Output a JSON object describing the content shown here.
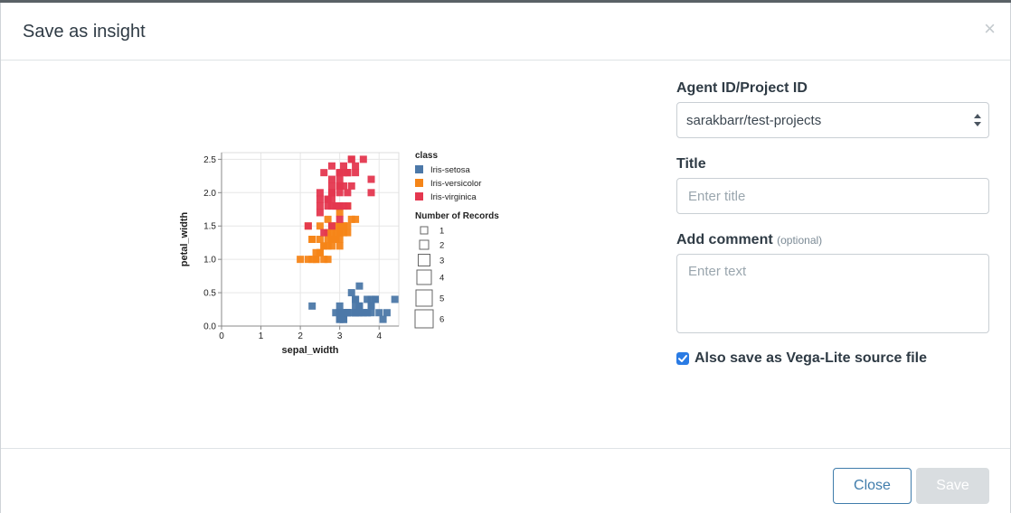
{
  "dialog": {
    "title": "Save as insight",
    "close_symbol": "×"
  },
  "form": {
    "agent_label": "Agent ID/Project ID",
    "agent_value": "sarakbarr/test-projects",
    "title_label": "Title",
    "title_placeholder": "Enter title",
    "comment_label": "Add comment",
    "comment_optional": "(optional)",
    "comment_placeholder": "Enter text",
    "vega_checkbox_label": "Also save as Vega-Lite source file",
    "vega_checkbox_checked": true
  },
  "footer": {
    "close_label": "Close",
    "save_label": "Save"
  },
  "colors": {
    "accent": "#2a7be4",
    "setosa": "#4c78a8",
    "versicolor": "#f58518",
    "virginica": "#e4374f"
  },
  "chart_data": {
    "type": "scatter",
    "xlabel": "sepal_width",
    "ylabel": "petal_width",
    "xlim": [
      0,
      4.5
    ],
    "ylim": [
      0,
      2.6
    ],
    "x_ticks": [
      "0",
      "1",
      "2",
      "3",
      "4"
    ],
    "y_ticks": [
      "0.0",
      "0.5",
      "1.0",
      "1.5",
      "2.0",
      "2.5"
    ],
    "grid": true,
    "legend": {
      "color_title": "class",
      "size_title": "Number of Records",
      "size_labels": [
        "1",
        "2",
        "3",
        "4",
        "5",
        "6"
      ],
      "placement": "right"
    },
    "series": [
      {
        "name": "Iris-setosa",
        "points": [
          [
            3.5,
            0.2
          ],
          [
            3.0,
            0.2
          ],
          [
            3.2,
            0.2
          ],
          [
            3.1,
            0.2
          ],
          [
            3.6,
            0.2
          ],
          [
            3.9,
            0.4
          ],
          [
            3.4,
            0.3
          ],
          [
            3.4,
            0.2
          ],
          [
            2.9,
            0.2
          ],
          [
            3.1,
            0.1
          ],
          [
            3.7,
            0.2
          ],
          [
            3.4,
            0.2
          ],
          [
            3.0,
            0.1
          ],
          [
            3.0,
            0.1
          ],
          [
            4.0,
            0.2
          ],
          [
            4.4,
            0.4
          ],
          [
            3.9,
            0.4
          ],
          [
            3.5,
            0.3
          ],
          [
            3.8,
            0.3
          ],
          [
            3.8,
            0.3
          ],
          [
            3.4,
            0.2
          ],
          [
            3.7,
            0.4
          ],
          [
            3.6,
            0.2
          ],
          [
            3.3,
            0.5
          ],
          [
            3.4,
            0.2
          ],
          [
            3.0,
            0.2
          ],
          [
            3.4,
            0.4
          ],
          [
            3.5,
            0.2
          ],
          [
            3.4,
            0.2
          ],
          [
            3.2,
            0.2
          ],
          [
            3.1,
            0.2
          ],
          [
            3.4,
            0.4
          ],
          [
            4.1,
            0.1
          ],
          [
            4.2,
            0.2
          ],
          [
            3.1,
            0.1
          ],
          [
            3.2,
            0.2
          ],
          [
            3.5,
            0.2
          ],
          [
            3.1,
            0.1
          ],
          [
            3.0,
            0.2
          ],
          [
            3.4,
            0.2
          ],
          [
            3.5,
            0.3
          ],
          [
            2.3,
            0.3
          ],
          [
            3.2,
            0.2
          ],
          [
            3.5,
            0.6
          ],
          [
            3.8,
            0.4
          ],
          [
            3.0,
            0.3
          ],
          [
            3.8,
            0.2
          ],
          [
            3.2,
            0.2
          ],
          [
            3.7,
            0.2
          ],
          [
            3.3,
            0.2
          ]
        ]
      },
      {
        "name": "Iris-versicolor",
        "points": [
          [
            3.2,
            1.4
          ],
          [
            3.2,
            1.5
          ],
          [
            3.1,
            1.5
          ],
          [
            2.3,
            1.3
          ],
          [
            2.8,
            1.5
          ],
          [
            2.8,
            1.3
          ],
          [
            3.3,
            1.6
          ],
          [
            2.4,
            1.0
          ],
          [
            2.9,
            1.3
          ],
          [
            2.7,
            1.4
          ],
          [
            2.0,
            1.0
          ],
          [
            3.0,
            1.5
          ],
          [
            2.2,
            1.0
          ],
          [
            2.9,
            1.4
          ],
          [
            2.9,
            1.3
          ],
          [
            3.1,
            1.4
          ],
          [
            3.0,
            1.5
          ],
          [
            2.7,
            1.0
          ],
          [
            2.2,
            1.5
          ],
          [
            2.5,
            1.1
          ],
          [
            3.2,
            1.8
          ],
          [
            2.8,
            1.3
          ],
          [
            2.5,
            1.5
          ],
          [
            2.8,
            1.2
          ],
          [
            2.9,
            1.3
          ],
          [
            3.0,
            1.4
          ],
          [
            2.8,
            1.4
          ],
          [
            3.0,
            1.7
          ],
          [
            2.9,
            1.5
          ],
          [
            2.6,
            1.0
          ],
          [
            2.4,
            1.1
          ],
          [
            2.4,
            1.0
          ],
          [
            2.7,
            1.2
          ],
          [
            2.7,
            1.6
          ],
          [
            3.0,
            1.5
          ],
          [
            3.4,
            1.6
          ],
          [
            3.1,
            1.5
          ],
          [
            2.3,
            1.3
          ],
          [
            3.0,
            1.3
          ],
          [
            2.5,
            1.3
          ],
          [
            2.6,
            1.2
          ],
          [
            3.0,
            1.4
          ],
          [
            2.6,
            1.2
          ],
          [
            2.3,
            1.0
          ],
          [
            2.7,
            1.3
          ],
          [
            3.0,
            1.2
          ],
          [
            2.9,
            1.3
          ],
          [
            2.9,
            1.3
          ],
          [
            2.5,
            1.1
          ],
          [
            2.8,
            1.3
          ]
        ]
      },
      {
        "name": "Iris-virginica",
        "points": [
          [
            3.3,
            2.5
          ],
          [
            2.7,
            1.9
          ],
          [
            3.0,
            2.1
          ],
          [
            2.9,
            1.8
          ],
          [
            3.0,
            2.2
          ],
          [
            3.0,
            2.1
          ],
          [
            2.5,
            1.7
          ],
          [
            2.9,
            1.8
          ],
          [
            2.5,
            1.8
          ],
          [
            3.6,
            2.5
          ],
          [
            3.2,
            2.0
          ],
          [
            2.7,
            1.9
          ],
          [
            3.0,
            2.1
          ],
          [
            2.5,
            2.0
          ],
          [
            2.8,
            2.4
          ],
          [
            3.2,
            2.3
          ],
          [
            3.0,
            1.8
          ],
          [
            3.8,
            2.2
          ],
          [
            2.6,
            2.3
          ],
          [
            2.2,
            1.5
          ],
          [
            3.2,
            2.3
          ],
          [
            2.8,
            2.0
          ],
          [
            2.8,
            2.0
          ],
          [
            2.7,
            1.8
          ],
          [
            3.3,
            2.1
          ],
          [
            3.2,
            1.8
          ],
          [
            2.8,
            1.8
          ],
          [
            3.0,
            1.8
          ],
          [
            2.8,
            2.1
          ],
          [
            3.0,
            1.6
          ],
          [
            2.8,
            1.9
          ],
          [
            3.8,
            2.0
          ],
          [
            2.8,
            2.2
          ],
          [
            2.8,
            1.5
          ],
          [
            2.6,
            1.4
          ],
          [
            3.0,
            2.3
          ],
          [
            3.4,
            2.4
          ],
          [
            3.1,
            1.8
          ],
          [
            3.0,
            1.8
          ],
          [
            3.1,
            2.1
          ],
          [
            3.1,
            2.4
          ],
          [
            3.1,
            2.3
          ],
          [
            2.7,
            1.9
          ],
          [
            3.2,
            2.3
          ],
          [
            3.3,
            2.5
          ],
          [
            3.0,
            2.3
          ],
          [
            2.5,
            1.9
          ],
          [
            3.0,
            2.0
          ],
          [
            3.4,
            2.3
          ],
          [
            3.0,
            1.8
          ]
        ]
      }
    ]
  }
}
